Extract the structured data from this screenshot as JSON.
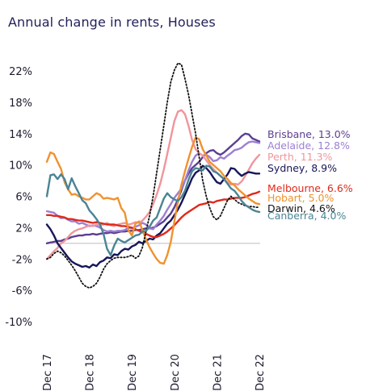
{
  "chart_data": {
    "type": "line",
    "title": "Annual change in rents, Houses",
    "xlabel": "",
    "ylabel": "",
    "x_start": "2017-12",
    "x_end": "2022-12",
    "x_ticks": [
      "Dec 17",
      "Dec 18",
      "Dec 19",
      "Dec 20",
      "Dec 21",
      "Dec 22"
    ],
    "y_ticks": [
      "22%",
      "18%",
      "14%",
      "10%",
      "6%",
      "2%",
      "-2%",
      "-6%",
      "-10%"
    ],
    "y_tick_values": [
      22,
      18,
      14,
      10,
      6,
      2,
      -2,
      -6,
      -10
    ],
    "ylim": [
      -10,
      22
    ],
    "zero_line": true,
    "series": [
      {
        "name": "Brisbane, 13.0%",
        "color": "#5b3f8f",
        "style": "solid",
        "values": [
          0.0,
          0.1,
          0.2,
          0.3,
          0.3,
          0.5,
          0.6,
          0.8,
          0.9,
          1.0,
          1.0,
          1.1,
          1.1,
          1.2,
          1.1,
          1.2,
          1.3,
          1.3,
          1.4,
          1.3,
          1.4,
          1.5,
          1.5,
          1.6,
          1.6,
          1.7,
          1.7,
          1.8,
          1.9,
          1.9,
          2.0,
          2.2,
          2.5,
          2.8,
          3.3,
          3.8,
          4.6,
          5.6,
          6.8,
          8.0,
          8.9,
          9.6,
          10.0,
          10.4,
          11.0,
          11.5,
          11.8,
          11.9,
          11.5,
          11.3,
          11.6,
          12.0,
          12.4,
          12.8,
          13.2,
          13.7,
          14.0,
          13.9,
          13.4,
          13.2,
          13.0
        ]
      },
      {
        "name": "Adelaide, 12.8%",
        "color": "#9b7fd4",
        "style": "solid",
        "values": [
          4.1,
          4.0,
          3.9,
          3.5,
          3.2,
          3.3,
          3.0,
          2.8,
          2.8,
          2.5,
          2.6,
          2.4,
          2.2,
          2.3,
          2.2,
          2.0,
          1.7,
          1.5,
          1.6,
          1.5,
          1.6,
          1.6,
          1.7,
          2.0,
          1.9,
          2.1,
          2.3,
          2.6,
          2.4,
          1.9,
          1.8,
          2.4,
          2.9,
          3.5,
          4.3,
          5.0,
          5.8,
          6.4,
          7.0,
          8.0,
          9.3,
          10.4,
          11.2,
          11.5,
          11.2,
          11.3,
          11.0,
          10.5,
          10.6,
          11.0,
          10.8,
          11.2,
          11.5,
          11.9,
          12.0,
          12.2,
          12.6,
          12.9,
          13.0,
          12.9,
          12.8
        ]
      },
      {
        "name": "Perth, 11.3%",
        "color": "#f0959b",
        "style": "solid",
        "values": [
          -2.0,
          -1.5,
          -1.0,
          -0.6,
          0.0,
          0.3,
          0.8,
          1.3,
          1.6,
          1.8,
          1.9,
          2.1,
          2.3,
          2.2,
          2.4,
          2.3,
          2.4,
          2.6,
          2.3,
          2.2,
          2.4,
          2.5,
          2.6,
          2.4,
          2.5,
          2.7,
          2.6,
          2.9,
          3.4,
          4.0,
          5.0,
          6.2,
          7.6,
          9.4,
          11.4,
          13.5,
          15.6,
          16.8,
          17.0,
          16.5,
          15.0,
          13.2,
          12.0,
          11.5,
          11.2,
          10.6,
          10.0,
          9.5,
          9.0,
          8.6,
          8.2,
          7.8,
          7.5,
          7.6,
          7.5,
          7.9,
          8.6,
          9.4,
          10.2,
          10.8,
          11.3
        ]
      },
      {
        "name": "Sydney, 8.9%",
        "color": "#16165a",
        "style": "solid",
        "values": [
          2.4,
          1.8,
          1.0,
          0.0,
          -0.6,
          -1.2,
          -1.8,
          -2.3,
          -2.6,
          -2.8,
          -3.0,
          -2.9,
          -3.1,
          -2.7,
          -2.9,
          -2.4,
          -2.2,
          -1.8,
          -1.9,
          -1.4,
          -1.5,
          -1.0,
          -0.7,
          -0.8,
          -0.4,
          -0.2,
          0.2,
          0.0,
          0.3,
          0.6,
          0.5,
          1.0,
          1.3,
          1.9,
          2.5,
          2.9,
          3.6,
          4.3,
          5.2,
          6.2,
          7.2,
          8.3,
          9.0,
          9.3,
          9.9,
          9.6,
          9.1,
          8.4,
          7.8,
          7.6,
          8.2,
          8.8,
          9.6,
          9.5,
          9.0,
          8.6,
          8.9,
          9.1,
          9.0,
          8.9,
          8.9
        ]
      },
      {
        "name": "Melbourne, 6.6%",
        "color": "#e0291b",
        "style": "solid",
        "values": [
          3.6,
          3.6,
          3.5,
          3.5,
          3.4,
          3.3,
          3.1,
          3.1,
          3.0,
          2.9,
          2.9,
          2.8,
          2.7,
          2.6,
          2.7,
          2.6,
          2.5,
          2.4,
          2.4,
          2.4,
          2.3,
          2.2,
          2.2,
          2.1,
          2.0,
          1.8,
          1.6,
          1.4,
          1.2,
          1.0,
          0.8,
          0.8,
          1.0,
          1.2,
          1.5,
          1.9,
          2.3,
          2.8,
          3.3,
          3.7,
          4.0,
          4.3,
          4.6,
          4.9,
          5.0,
          5.1,
          5.3,
          5.2,
          5.4,
          5.5,
          5.6,
          5.6,
          5.7,
          5.8,
          5.8,
          5.8,
          5.9,
          6.1,
          6.3,
          6.4,
          6.6
        ]
      },
      {
        "name": "Hobart, 5.0%",
        "color": "#f0922f",
        "style": "solid",
        "values": [
          10.4,
          11.6,
          11.4,
          10.4,
          9.5,
          7.8,
          6.9,
          6.2,
          6.3,
          6.0,
          5.8,
          5.6,
          5.6,
          6.0,
          6.4,
          6.2,
          5.7,
          5.8,
          5.7,
          5.6,
          5.8,
          4.5,
          3.9,
          1.7,
          1.0,
          2.5,
          2.8,
          1.7,
          0.5,
          -0.5,
          -1.3,
          -2.0,
          -2.5,
          -2.6,
          -1.5,
          0.2,
          2.8,
          5.3,
          7.5,
          9.2,
          10.8,
          12.3,
          13.5,
          13.3,
          12.0,
          11.2,
          10.4,
          10.0,
          9.6,
          9.2,
          8.6,
          8.2,
          7.7,
          7.4,
          6.9,
          6.5,
          6.1,
          5.7,
          5.4,
          5.1,
          5.0
        ]
      },
      {
        "name": "Darwin, 4.6%",
        "color": "#111111",
        "style": "dotted",
        "values": [
          -2.0,
          -1.8,
          -1.3,
          -1.0,
          -1.2,
          -1.6,
          -2.2,
          -2.8,
          -3.5,
          -4.3,
          -5.1,
          -5.5,
          -5.7,
          -5.5,
          -5.1,
          -4.3,
          -3.3,
          -2.6,
          -2.2,
          -1.9,
          -1.8,
          -1.8,
          -1.8,
          -1.7,
          -1.5,
          -1.9,
          -1.6,
          -0.5,
          1.5,
          3.5,
          6.0,
          9.0,
          12.0,
          15.0,
          18.0,
          20.6,
          22.1,
          23.0,
          22.8,
          21.0,
          19.0,
          16.5,
          14.0,
          11.0,
          8.0,
          6.0,
          4.5,
          3.4,
          3.0,
          3.5,
          4.5,
          5.5,
          6.0,
          5.6,
          5.2,
          5.0,
          4.8,
          4.7,
          4.7,
          4.6,
          4.6
        ]
      },
      {
        "name": "Canberra, 4.0%",
        "color": "#4a8494",
        "style": "solid",
        "values": [
          6.0,
          8.7,
          8.8,
          8.2,
          8.8,
          8.2,
          6.9,
          8.3,
          7.3,
          6.4,
          5.5,
          5.1,
          4.2,
          3.7,
          3.1,
          2.4,
          1.2,
          -0.7,
          -1.5,
          -0.3,
          0.6,
          0.3,
          0.1,
          0.4,
          0.7,
          1.0,
          1.1,
          1.5,
          1.6,
          2.1,
          2.9,
          3.3,
          4.5,
          5.7,
          6.4,
          5.9,
          5.6,
          5.4,
          5.9,
          6.7,
          8.1,
          9.2,
          9.6,
          9.5,
          9.3,
          9.9,
          9.8,
          9.2,
          9.0,
          8.6,
          8.2,
          7.6,
          7.0,
          6.7,
          6.1,
          5.4,
          4.9,
          4.6,
          4.3,
          4.1,
          4.0
        ]
      }
    ]
  }
}
